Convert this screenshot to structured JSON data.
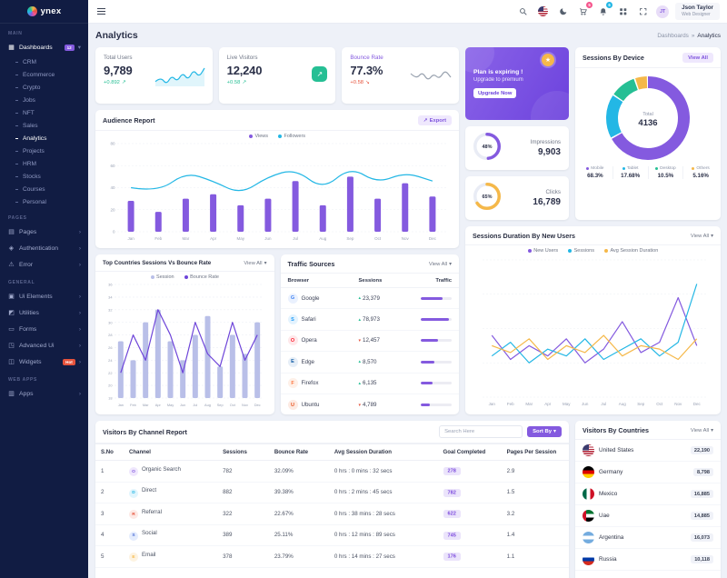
{
  "brand": {
    "name": "ynex"
  },
  "icons": {
    "export_arrow": "↗",
    "caret_down": "▾",
    "chevron_right": "›",
    "trend_up": "↗",
    "trend_down": "↘",
    "tri_up": "▴",
    "tri_down": "▾",
    "medal_star": "★",
    "live_arrow": "↗"
  },
  "sidebar": {
    "sections": [
      {
        "heading": "MAIN",
        "items": [
          {
            "label": "Dashboards",
            "icon": "dashboards",
            "badge": "12",
            "open": true,
            "active": true,
            "children": [
              {
                "label": "CRM"
              },
              {
                "label": "Ecommerce"
              },
              {
                "label": "Crypto"
              },
              {
                "label": "Jobs"
              },
              {
                "label": "NFT"
              },
              {
                "label": "Sales"
              },
              {
                "label": "Analytics",
                "active": true
              },
              {
                "label": "Projects"
              },
              {
                "label": "HRM"
              },
              {
                "label": "Stocks"
              },
              {
                "label": "Courses"
              },
              {
                "label": "Personal"
              }
            ]
          }
        ]
      },
      {
        "heading": "PAGES",
        "items": [
          {
            "label": "Pages",
            "icon": "pages",
            "chevron": true
          },
          {
            "label": "Authentication",
            "icon": "authentication",
            "chevron": true
          },
          {
            "label": "Error",
            "icon": "error",
            "chevron": true
          }
        ]
      },
      {
        "heading": "GENERAL",
        "items": [
          {
            "label": "Ui Elements",
            "icon": "ui-elements",
            "chevron": true
          },
          {
            "label": "Utilities",
            "icon": "utilities",
            "chevron": true
          },
          {
            "label": "Forms",
            "icon": "forms",
            "chevron": true
          },
          {
            "label": "Advanced Ui",
            "icon": "advanced-ui",
            "chevron": true
          },
          {
            "label": "Widgets",
            "icon": "widgets",
            "badge": "Hot",
            "badge_type": "hot"
          }
        ]
      },
      {
        "heading": "WEB APPS",
        "items": [
          {
            "label": "Apps",
            "icon": "apps",
            "chevron": true
          }
        ]
      }
    ]
  },
  "header": {
    "user": {
      "name": "Json Taylor",
      "role": "Web Designer",
      "initials": "JT"
    },
    "cart_badge": "5",
    "bell_badge": "6"
  },
  "page": {
    "title": "Analytics",
    "breadcrumb": {
      "parent": "Dashboards",
      "separator": "»",
      "current": "Analytics"
    }
  },
  "stats": {
    "total_users": {
      "label": "Total Users",
      "value": "9,789",
      "change": "+0.892"
    },
    "live_visitors": {
      "label": "Live Visitors",
      "value": "12,240",
      "change": "+0.58"
    },
    "bounce_rate": {
      "label": "Bounce Rate",
      "value": "77.3%",
      "change": "+0.58"
    }
  },
  "upgrade": {
    "title": "Plan is expiring !",
    "subtitle": "Upgrade to premium",
    "button": "Upgrade Now"
  },
  "device": {
    "title": "Sessions By Device",
    "view_all": "View All",
    "legend": [
      {
        "name": "Mobile",
        "value": "68.3%",
        "color": "#845adf"
      },
      {
        "name": "Tablet",
        "value": "17.68%",
        "color": "#23b7e5"
      },
      {
        "name": "Desktop",
        "value": "10.5%",
        "color": "#26bf94"
      },
      {
        "name": "Others",
        "value": "5.16%",
        "color": "#f5b849"
      }
    ]
  },
  "audience": {
    "title": "Audience Report",
    "export_label": "Export"
  },
  "impressions": {
    "label": "Impressions",
    "value": "9,903",
    "pct": "48%"
  },
  "clicks": {
    "label": "Clicks",
    "value": "16,789",
    "pct": "65%"
  },
  "sessions_duration": {
    "title": "Sessions Duration By New Users",
    "view_all": "View All"
  },
  "top_countries": {
    "title": "Top Countries Sessions Vs Bounce Rate",
    "view_all": "View All"
  },
  "traffic": {
    "title": "Traffic Sources",
    "view_all": "View All",
    "headers": [
      "Browser",
      "Sessions",
      "Traffic"
    ],
    "rows": [
      {
        "browser": "Google",
        "icon": "google",
        "trend": "up",
        "sessions": "23,379",
        "bar_pct": 70
      },
      {
        "browser": "Safari",
        "icon": "safari",
        "trend": "up",
        "sessions": "78,973",
        "bar_pct": 90
      },
      {
        "browser": "Opera",
        "icon": "opera",
        "trend": "down",
        "sessions": "12,457",
        "bar_pct": 55
      },
      {
        "browser": "Edge",
        "icon": "edge",
        "trend": "up",
        "sessions": "8,570",
        "bar_pct": 45
      },
      {
        "browser": "Firefox",
        "icon": "firefox",
        "trend": "up",
        "sessions": "6,135",
        "bar_pct": 38
      },
      {
        "browser": "Ubuntu",
        "icon": "ubuntu",
        "trend": "down",
        "sessions": "4,789",
        "bar_pct": 30
      }
    ]
  },
  "channel_report": {
    "title": "Visitors By Channel Report",
    "search_placeholder": "Search Here",
    "sort_label": "Sort By",
    "headers": [
      "S.No",
      "Channel",
      "Sessions",
      "Bounce Rate",
      "Avg Session Duration",
      "Goal Completed",
      "Pages Per Session"
    ],
    "rows": [
      {
        "no": "1",
        "channel": "Organic Search",
        "icon": "organic-search",
        "sessions": "782",
        "bounce": "32.09%",
        "duration": "0 hrs : 0 mins : 32 secs",
        "goal": "278",
        "pages": "2.9"
      },
      {
        "no": "2",
        "channel": "Direct",
        "icon": "direct",
        "sessions": "882",
        "bounce": "39.38%",
        "duration": "0 hrs : 2 mins : 45 secs",
        "goal": "782",
        "pages": "1.5"
      },
      {
        "no": "3",
        "channel": "Referral",
        "icon": "referral",
        "sessions": "322",
        "bounce": "22.67%",
        "duration": "0 hrs : 38 mins : 28 secs",
        "goal": "622",
        "pages": "3.2"
      },
      {
        "no": "4",
        "channel": "Social",
        "icon": "social",
        "sessions": "389",
        "bounce": "25.11%",
        "duration": "0 hrs : 12 mins : 89 secs",
        "goal": "745",
        "pages": "1.4"
      },
      {
        "no": "5",
        "channel": "Email",
        "icon": "email",
        "sessions": "378",
        "bounce": "23.79%",
        "duration": "0 hrs : 14 mins : 27 secs",
        "goal": "176",
        "pages": "1.1"
      }
    ]
  },
  "countries": {
    "title": "Visitors By Countries",
    "view_all": "View All",
    "rows": [
      {
        "name": "United States",
        "flag": "us",
        "value": "22,190"
      },
      {
        "name": "Germany",
        "flag": "de",
        "value": "8,798"
      },
      {
        "name": "Mexico",
        "flag": "mx",
        "value": "16,885"
      },
      {
        "name": "Uae",
        "flag": "ae",
        "value": "14,885"
      },
      {
        "name": "Argentina",
        "flag": "ar",
        "value": "16,073"
      },
      {
        "name": "Russia",
        "flag": "ru",
        "value": "10,118"
      }
    ]
  },
  "chart_data": [
    {
      "id": "total-users-spark",
      "type": "spark",
      "values": [
        11,
        14,
        9,
        15,
        11,
        17,
        12,
        19,
        14,
        20
      ],
      "color": "#23b7e5",
      "fill": "rgba(35,183,229,0.14)"
    },
    {
      "id": "bounce-spark",
      "type": "spark",
      "values": [
        12,
        9,
        13,
        8,
        12,
        9,
        14,
        10
      ],
      "color": "#9aa3b0",
      "fill": "none"
    },
    {
      "id": "audience-report",
      "type": "mixed",
      "title": "Audience Report",
      "categories": [
        "Jan",
        "Feb",
        "Mar",
        "Apr",
        "May",
        "Jun",
        "Jul",
        "Aug",
        "Sep",
        "Oct",
        "Nov",
        "Dec"
      ],
      "ylim": [
        0,
        80
      ],
      "yticks": [
        0,
        20,
        40,
        60,
        80
      ],
      "bars": [
        {
          "name": "Views",
          "color": "#845adf",
          "values": [
            28,
            18,
            30,
            34,
            24,
            30,
            46,
            24,
            50,
            30,
            44,
            32
          ]
        }
      ],
      "lines": [
        {
          "name": "Followers",
          "color": "#23b7e5",
          "smooth": true,
          "values": [
            40,
            36,
            54,
            46,
            34,
            50,
            57,
            38,
            59,
            44,
            54,
            46
          ]
        }
      ],
      "legend": [
        {
          "label": "Views",
          "color": "#845adf"
        },
        {
          "label": "Followers",
          "color": "#23b7e5"
        }
      ]
    },
    {
      "id": "sessions-by-device",
      "type": "donut",
      "center_label": "Total",
      "center_value": "4136",
      "segments": [
        {
          "label": "Mobile",
          "value": 68.3,
          "color": "#845adf"
        },
        {
          "label": "Tablet",
          "value": 17.68,
          "color": "#23b7e5"
        },
        {
          "label": "Desktop",
          "value": 10.5,
          "color": "#26bf94"
        },
        {
          "label": "Others",
          "value": 5.16,
          "color": "#f5b849"
        }
      ]
    },
    {
      "id": "impressions-ring",
      "type": "ring",
      "pct": 48,
      "color": "#845adf"
    },
    {
      "id": "clicks-ring",
      "type": "ring",
      "pct": 65,
      "color": "#f5b849"
    },
    {
      "id": "sessions-duration",
      "type": "mixed",
      "title": "Sessions Duration By New Users",
      "categories": [
        "Jan",
        "Feb",
        "Mar",
        "Apr",
        "May",
        "Jun",
        "Jul",
        "Aug",
        "Sep",
        "Oct",
        "Nov",
        "Dec"
      ],
      "ylim": [
        0,
        80
      ],
      "yticks": [
        0,
        20,
        40,
        60,
        80
      ],
      "lines": [
        {
          "name": "New Users",
          "color": "#845adf",
          "values": [
            36,
            22,
            30,
            24,
            34,
            20,
            28,
            44,
            26,
            32,
            58,
            30
          ]
        },
        {
          "name": "Sessions",
          "color": "#23b7e5",
          "values": [
            24,
            32,
            20,
            28,
            24,
            34,
            22,
            28,
            34,
            24,
            32,
            66
          ]
        },
        {
          "name": "Avg Session Duration",
          "color": "#f5b849",
          "values": [
            30,
            26,
            34,
            22,
            30,
            26,
            36,
            24,
            30,
            28,
            22,
            34
          ]
        }
      ],
      "legend": [
        {
          "label": "New Users",
          "color": "#845adf"
        },
        {
          "label": "Sessions",
          "color": "#23b7e5"
        },
        {
          "label": "Avg Session Duration",
          "color": "#f5b849"
        }
      ]
    },
    {
      "id": "top-countries",
      "type": "mixed",
      "title": "Top Countries Sessions Vs Bounce Rate",
      "categories": [
        "Jan",
        "Feb",
        "Mar",
        "Apr",
        "May",
        "Jun",
        "Jul",
        "Aug",
        "Sep",
        "Oct",
        "Nov",
        "Dec"
      ],
      "ylim": [
        18,
        36
      ],
      "yticks": [
        18,
        20,
        22,
        24,
        26,
        28,
        30,
        32,
        34,
        36
      ],
      "bars": [
        {
          "name": "Session",
          "color": "#b9bfe8",
          "values": [
            27,
            24,
            30,
            32,
            27,
            24,
            28,
            31,
            23,
            28,
            25,
            30
          ]
        }
      ],
      "lines": [
        {
          "name": "Bounce Rate",
          "color": "#6e45d9",
          "smooth": false,
          "values": [
            22,
            28,
            24,
            32,
            28,
            22,
            30,
            25,
            23,
            30,
            24,
            28
          ]
        }
      ],
      "legend": [
        {
          "label": "Session",
          "color": "#b9bfe8"
        },
        {
          "label": "Bounce Rate",
          "color": "#6e45d9"
        }
      ]
    }
  ]
}
